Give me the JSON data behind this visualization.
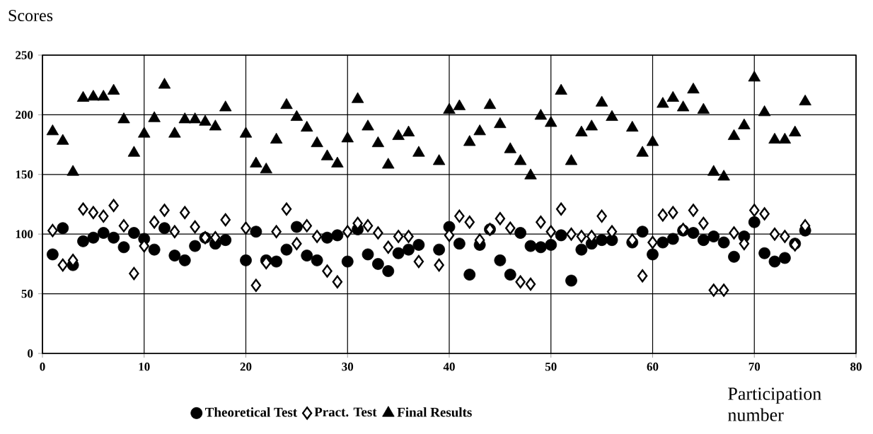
{
  "chart_data": {
    "type": "scatter",
    "ylabel": "Scores",
    "xlabel": "Participation number",
    "x": [
      1,
      2,
      3,
      4,
      5,
      6,
      7,
      8,
      9,
      10,
      11,
      12,
      13,
      14,
      15,
      16,
      17,
      18,
      20,
      21,
      22,
      23,
      24,
      25,
      26,
      27,
      28,
      29,
      30,
      31,
      32,
      33,
      34,
      35,
      36,
      37,
      39,
      40,
      41,
      42,
      43,
      44,
      45,
      46,
      47,
      48,
      49,
      50,
      51,
      52,
      53,
      54,
      55,
      56,
      58,
      59,
      60,
      61,
      62,
      63,
      64,
      65,
      66,
      67,
      68,
      69,
      70,
      71,
      72,
      73,
      74,
      75
    ],
    "xlim": [
      0,
      80
    ],
    "xticks": [
      0,
      10,
      20,
      30,
      40,
      50,
      60,
      70,
      80
    ],
    "ylim": [
      0,
      250
    ],
    "yticks": [
      0,
      50,
      100,
      150,
      200,
      250
    ],
    "grid": true,
    "legend": "bottom",
    "series": [
      {
        "name": "Theoretical Test",
        "color": "#000000",
        "marker": "circle",
        "values": [
          83,
          105,
          74,
          94,
          97,
          101,
          97,
          89,
          101,
          96,
          87,
          105,
          82,
          78,
          90,
          97,
          92,
          95,
          78,
          102,
          78,
          77,
          87,
          106,
          82,
          78,
          97,
          99,
          77,
          104,
          83,
          75,
          69,
          84,
          87,
          91,
          87,
          106,
          92,
          66,
          91,
          104,
          78,
          66,
          101,
          90,
          89,
          91,
          99,
          61,
          87,
          92,
          95,
          95,
          93,
          102,
          83,
          93,
          96,
          103,
          101,
          95,
          98,
          93,
          81,
          98,
          110,
          84,
          77,
          80,
          92,
          103
        ]
      },
      {
        "name": "Pract. Test",
        "color": "#000000",
        "marker": "diamond",
        "values": [
          103,
          74,
          78,
          121,
          118,
          115,
          124,
          107,
          67,
          90,
          110,
          120,
          102,
          118,
          106,
          97,
          97,
          112,
          105,
          57,
          76,
          102,
          121,
          92,
          107,
          98,
          69,
          60,
          102,
          109,
          107,
          101,
          89,
          98,
          98,
          77,
          74,
          99,
          115,
          110,
          95,
          104,
          113,
          105,
          60,
          58,
          110,
          102,
          121,
          100,
          98,
          98,
          115,
          102,
          95,
          65,
          93,
          116,
          118,
          104,
          120,
          109,
          53,
          53,
          101,
          92,
          120,
          117,
          100,
          98,
          91,
          107
        ]
      },
      {
        "name": "Final Results",
        "color": "#000000",
        "marker": "triangle",
        "values": [
          186,
          178,
          152,
          214,
          215,
          215,
          220,
          196,
          168,
          184,
          197,
          225,
          184,
          196,
          196,
          194,
          190,
          206,
          184,
          159,
          154,
          179,
          208,
          198,
          189,
          176,
          165,
          159,
          180,
          213,
          190,
          176,
          158,
          182,
          185,
          168,
          161,
          204,
          207,
          177,
          186,
          208,
          192,
          171,
          161,
          149,
          199,
          193,
          220,
          161,
          185,
          190,
          210,
          198,
          189,
          168,
          177,
          209,
          214,
          206,
          221,
          204,
          152,
          148,
          182,
          191,
          231,
          202,
          179,
          179,
          185,
          211
        ]
      }
    ]
  }
}
